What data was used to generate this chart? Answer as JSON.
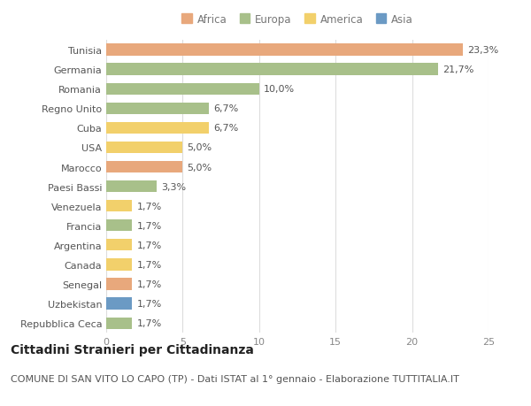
{
  "countries": [
    "Tunisia",
    "Germania",
    "Romania",
    "Regno Unito",
    "Cuba",
    "USA",
    "Marocco",
    "Paesi Bassi",
    "Venezuela",
    "Francia",
    "Argentina",
    "Canada",
    "Senegal",
    "Uzbekistan",
    "Repubblica Ceca"
  ],
  "values": [
    23.3,
    21.7,
    10.0,
    6.7,
    6.7,
    5.0,
    5.0,
    3.3,
    1.7,
    1.7,
    1.7,
    1.7,
    1.7,
    1.7,
    1.7
  ],
  "labels": [
    "23,3%",
    "21,7%",
    "10,0%",
    "6,7%",
    "6,7%",
    "5,0%",
    "5,0%",
    "3,3%",
    "1,7%",
    "1,7%",
    "1,7%",
    "1,7%",
    "1,7%",
    "1,7%",
    "1,7%"
  ],
  "continents": [
    "Africa",
    "Europa",
    "Europa",
    "Europa",
    "America",
    "America",
    "Africa",
    "Europa",
    "America",
    "Europa",
    "America",
    "America",
    "Africa",
    "Asia",
    "Europa"
  ],
  "colors": {
    "Africa": "#E8A87C",
    "Europa": "#A8C08A",
    "America": "#F2D06B",
    "Asia": "#6B9AC4"
  },
  "legend_order": [
    "Africa",
    "Europa",
    "America",
    "Asia"
  ],
  "title": "Cittadini Stranieri per Cittadinanza",
  "subtitle": "COMUNE DI SAN VITO LO CAPO (TP) - Dati ISTAT al 1° gennaio - Elaborazione TUTTITALIA.IT",
  "xlim": [
    0,
    25
  ],
  "xticks": [
    0,
    5,
    10,
    15,
    20,
    25
  ],
  "background_color": "#ffffff",
  "bar_height": 0.6,
  "grid_color": "#dddddd",
  "title_fontsize": 10,
  "subtitle_fontsize": 8,
  "label_fontsize": 8,
  "tick_fontsize": 8,
  "legend_fontsize": 8.5
}
